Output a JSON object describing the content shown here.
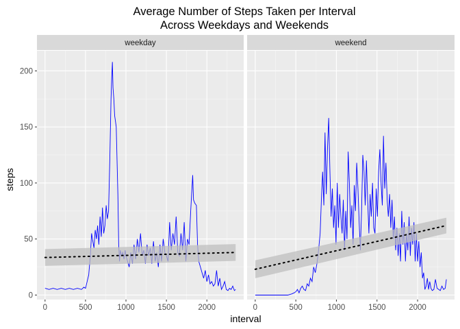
{
  "chart_data": {
    "type": "line",
    "title_lines": [
      "Average Number of Steps Taken per Interval",
      "Across Weekdays and Weekends"
    ],
    "xlabel": "interval",
    "ylabel": "steps",
    "xlim": [
      -100,
      2455
    ],
    "ylim": [
      -4,
      218
    ],
    "x_ticks": [
      0,
      500,
      1000,
      1500,
      2000
    ],
    "y_ticks": [
      0,
      50,
      100,
      150,
      200
    ],
    "grid": true,
    "line_color": "#0000ff",
    "trend_color": "#000000",
    "ribbon_color": "#bfbfbf",
    "panel_bg": "#ebebeb",
    "strip_bg": "#d9d9d9",
    "panels": [
      {
        "label": "weekday",
        "series": [
          [
            0,
            6
          ],
          [
            50,
            5
          ],
          [
            100,
            6
          ],
          [
            150,
            5
          ],
          [
            200,
            6
          ],
          [
            250,
            5
          ],
          [
            300,
            6
          ],
          [
            350,
            5
          ],
          [
            400,
            6
          ],
          [
            450,
            5
          ],
          [
            480,
            7
          ],
          [
            500,
            6
          ],
          [
            520,
            12
          ],
          [
            540,
            18
          ],
          [
            560,
            35
          ],
          [
            575,
            55
          ],
          [
            590,
            48
          ],
          [
            605,
            42
          ],
          [
            620,
            58
          ],
          [
            635,
            50
          ],
          [
            650,
            62
          ],
          [
            665,
            45
          ],
          [
            680,
            70
          ],
          [
            695,
            52
          ],
          [
            710,
            78
          ],
          [
            725,
            55
          ],
          [
            740,
            62
          ],
          [
            755,
            80
          ],
          [
            770,
            68
          ],
          [
            785,
            75
          ],
          [
            800,
            120
          ],
          [
            815,
            175
          ],
          [
            825,
            195
          ],
          [
            832,
            208
          ],
          [
            840,
            185
          ],
          [
            850,
            175
          ],
          [
            860,
            160
          ],
          [
            870,
            155
          ],
          [
            880,
            150
          ],
          [
            890,
            120
          ],
          [
            900,
            90
          ],
          [
            910,
            45
          ],
          [
            920,
            30
          ],
          [
            930,
            40
          ],
          [
            945,
            35
          ],
          [
            960,
            38
          ],
          [
            975,
            32
          ],
          [
            990,
            40
          ],
          [
            1000,
            35
          ],
          [
            1020,
            30
          ],
          [
            1040,
            25
          ],
          [
            1060,
            38
          ],
          [
            1080,
            28
          ],
          [
            1100,
            45
          ],
          [
            1120,
            32
          ],
          [
            1140,
            50
          ],
          [
            1160,
            38
          ],
          [
            1180,
            55
          ],
          [
            1200,
            35
          ],
          [
            1220,
            40
          ],
          [
            1240,
            28
          ],
          [
            1260,
            45
          ],
          [
            1280,
            35
          ],
          [
            1300,
            42
          ],
          [
            1320,
            28
          ],
          [
            1340,
            48
          ],
          [
            1360,
            30
          ],
          [
            1380,
            38
          ],
          [
            1400,
            25
          ],
          [
            1420,
            45
          ],
          [
            1440,
            30
          ],
          [
            1460,
            50
          ],
          [
            1480,
            38
          ],
          [
            1500,
            35
          ],
          [
            1520,
            30
          ],
          [
            1540,
            65
          ],
          [
            1560,
            40
          ],
          [
            1580,
            55
          ],
          [
            1600,
            45
          ],
          [
            1620,
            70
          ],
          [
            1640,
            38
          ],
          [
            1660,
            35
          ],
          [
            1680,
            55
          ],
          [
            1700,
            40
          ],
          [
            1720,
            65
          ],
          [
            1740,
            30
          ],
          [
            1760,
            50
          ],
          [
            1780,
            45
          ],
          [
            1800,
            75
          ],
          [
            1815,
            95
          ],
          [
            1825,
            107
          ],
          [
            1835,
            85
          ],
          [
            1850,
            82
          ],
          [
            1870,
            80
          ],
          [
            1885,
            45
          ],
          [
            1900,
            30
          ],
          [
            1920,
            25
          ],
          [
            1940,
            20
          ],
          [
            1960,
            15
          ],
          [
            1980,
            22
          ],
          [
            2000,
            12
          ],
          [
            2020,
            18
          ],
          [
            2040,
            10
          ],
          [
            2060,
            12
          ],
          [
            2080,
            8
          ],
          [
            2100,
            10
          ],
          [
            2120,
            22
          ],
          [
            2140,
            8
          ],
          [
            2160,
            15
          ],
          [
            2180,
            5
          ],
          [
            2200,
            8
          ],
          [
            2220,
            12
          ],
          [
            2240,
            5
          ],
          [
            2260,
            4
          ],
          [
            2280,
            6
          ],
          [
            2300,
            5
          ],
          [
            2320,
            8
          ],
          [
            2340,
            4
          ],
          [
            2355,
            5
          ]
        ],
        "trend": {
          "x": [
            0,
            2355
          ],
          "y": [
            33.5,
            38.0
          ]
        },
        "ribbon": {
          "lower": [
            26,
            30.5
          ],
          "upper": [
            41,
            45.5
          ]
        }
      },
      {
        "label": "weekend",
        "series": [
          [
            0,
            0
          ],
          [
            100,
            0
          ],
          [
            200,
            0
          ],
          [
            300,
            0
          ],
          [
            400,
            0
          ],
          [
            450,
            1
          ],
          [
            480,
            2
          ],
          [
            500,
            3
          ],
          [
            520,
            5
          ],
          [
            540,
            2
          ],
          [
            560,
            6
          ],
          [
            580,
            8
          ],
          [
            600,
            5
          ],
          [
            620,
            4
          ],
          [
            640,
            10
          ],
          [
            660,
            8
          ],
          [
            680,
            15
          ],
          [
            700,
            12
          ],
          [
            720,
            25
          ],
          [
            740,
            20
          ],
          [
            760,
            28
          ],
          [
            780,
            40
          ],
          [
            800,
            55
          ],
          [
            815,
            85
          ],
          [
            830,
            110
          ],
          [
            845,
            80
          ],
          [
            860,
            145
          ],
          [
            875,
            90
          ],
          [
            890,
            130
          ],
          [
            905,
            158
          ],
          [
            920,
            110
          ],
          [
            935,
            70
          ],
          [
            950,
            95
          ],
          [
            965,
            60
          ],
          [
            980,
            80
          ],
          [
            995,
            45
          ],
          [
            1010,
            100
          ],
          [
            1025,
            60
          ],
          [
            1040,
            90
          ],
          [
            1055,
            70
          ],
          [
            1070,
            55
          ],
          [
            1085,
            85
          ],
          [
            1100,
            40
          ],
          [
            1115,
            75
          ],
          [
            1130,
            50
          ],
          [
            1145,
            128
          ],
          [
            1160,
            100
          ],
          [
            1175,
            60
          ],
          [
            1190,
            80
          ],
          [
            1205,
            45
          ],
          [
            1220,
            98
          ],
          [
            1235,
            75
          ],
          [
            1250,
            118
          ],
          [
            1265,
            95
          ],
          [
            1280,
            65
          ],
          [
            1295,
            40
          ],
          [
            1310,
            75
          ],
          [
            1325,
            125
          ],
          [
            1340,
            110
          ],
          [
            1355,
            80
          ],
          [
            1370,
            120
          ],
          [
            1385,
            85
          ],
          [
            1400,
            55
          ],
          [
            1415,
            90
          ],
          [
            1430,
            70
          ],
          [
            1445,
            100
          ],
          [
            1460,
            60
          ],
          [
            1475,
            55
          ],
          [
            1490,
            95
          ],
          [
            1505,
            70
          ],
          [
            1520,
            110
          ],
          [
            1535,
            130
          ],
          [
            1550,
            100
          ],
          [
            1565,
            80
          ],
          [
            1580,
            142
          ],
          [
            1595,
            95
          ],
          [
            1610,
            118
          ],
          [
            1625,
            85
          ],
          [
            1640,
            70
          ],
          [
            1655,
            90
          ],
          [
            1670,
            60
          ],
          [
            1685,
            85
          ],
          [
            1700,
            50
          ],
          [
            1715,
            70
          ],
          [
            1730,
            40
          ],
          [
            1745,
            60
          ],
          [
            1760,
            35
          ],
          [
            1775,
            55
          ],
          [
            1790,
            30
          ],
          [
            1805,
            75
          ],
          [
            1820,
            45
          ],
          [
            1835,
            65
          ],
          [
            1850,
            30
          ],
          [
            1865,
            55
          ],
          [
            1880,
            40
          ],
          [
            1895,
            70
          ],
          [
            1910,
            35
          ],
          [
            1925,
            60
          ],
          [
            1940,
            45
          ],
          [
            1955,
            65
          ],
          [
            1970,
            30
          ],
          [
            1985,
            55
          ],
          [
            2000,
            30
          ],
          [
            2015,
            48
          ],
          [
            2030,
            25
          ],
          [
            2045,
            38
          ],
          [
            2060,
            15
          ],
          [
            2075,
            20
          ],
          [
            2090,
            5
          ],
          [
            2105,
            8
          ],
          [
            2120,
            15
          ],
          [
            2135,
            5
          ],
          [
            2150,
            12
          ],
          [
            2165,
            6
          ],
          [
            2180,
            4
          ],
          [
            2200,
            5
          ],
          [
            2220,
            14
          ],
          [
            2240,
            6
          ],
          [
            2260,
            5
          ],
          [
            2280,
            4
          ],
          [
            2300,
            8
          ],
          [
            2320,
            5
          ],
          [
            2340,
            6
          ],
          [
            2355,
            14
          ]
        ],
        "trend": {
          "x": [
            0,
            2355
          ],
          "y": [
            23.0,
            62.0
          ]
        },
        "ribbon": {
          "lower": [
            15,
            55
          ],
          "upper": [
            31,
            69
          ]
        }
      }
    ]
  }
}
